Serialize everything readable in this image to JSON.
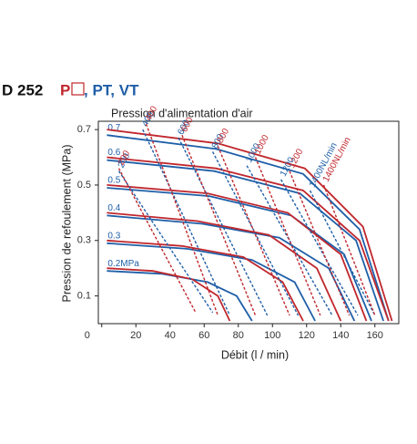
{
  "chart_data": {
    "type": "line",
    "title": "D 252",
    "title_variants": [
      "P",
      ", PT, VT"
    ],
    "annotation": "Pression d'alimentation d'air",
    "xlabel": "Débit (l / min)",
    "ylabel": "Pression de refoulement (MPa)",
    "xlim": [
      -2,
      174
    ],
    "ylim": [
      0,
      0.73
    ],
    "xticks": [
      0,
      20,
      40,
      60,
      80,
      100,
      120,
      140,
      160
    ],
    "yticks": [
      0.1,
      0.3,
      0.5,
      0.7
    ],
    "series": [
      {
        "name": "0.7",
        "color": "#1f5fa8",
        "x": [
          3,
          67,
          118,
          151,
          168
        ],
        "values": [
          0.68,
          0.63,
          0.54,
          0.34,
          0.01
        ]
      },
      {
        "name": "0.6",
        "color": "#1f5fa8",
        "x": [
          3,
          66,
          116,
          149,
          165
        ],
        "values": [
          0.59,
          0.55,
          0.47,
          0.3,
          0.01
        ]
      },
      {
        "name": "0.5",
        "color": "#1f5fa8",
        "x": [
          3,
          63,
          111,
          142,
          158
        ],
        "values": [
          0.49,
          0.46,
          0.39,
          0.25,
          0.01
        ]
      },
      {
        "name": "0.4",
        "color": "#1f5fa8",
        "x": [
          3,
          59,
          104,
          133,
          148
        ],
        "values": [
          0.39,
          0.36,
          0.31,
          0.2,
          0.01
        ]
      },
      {
        "name": "0.3",
        "color": "#1f5fa8",
        "x": [
          3,
          50,
          88,
          113,
          125
        ],
        "values": [
          0.29,
          0.27,
          0.23,
          0.15,
          0.01
        ]
      },
      {
        "name": "0.2MPa",
        "color": "#1f5fa8",
        "x": [
          3,
          35,
          62,
          79,
          88
        ],
        "values": [
          0.19,
          0.18,
          0.15,
          0.1,
          0.01
        ]
      },
      {
        "color": "#c0272d",
        "x": [
          3,
          68,
          119,
          153,
          170
        ],
        "values": [
          0.7,
          0.65,
          0.56,
          0.35,
          0.01
        ]
      },
      {
        "color": "#c0272d",
        "x": [
          3,
          67,
          118,
          151,
          168
        ],
        "values": [
          0.6,
          0.56,
          0.48,
          0.3,
          0.01
        ]
      },
      {
        "color": "#c0272d",
        "x": [
          3,
          62,
          109,
          140,
          155
        ],
        "values": [
          0.5,
          0.47,
          0.4,
          0.25,
          0.01
        ]
      },
      {
        "color": "#c0272d",
        "x": [
          3,
          56,
          98,
          126,
          140
        ],
        "values": [
          0.4,
          0.37,
          0.32,
          0.2,
          0.01
        ]
      },
      {
        "color": "#c0272d",
        "x": [
          3,
          47,
          83,
          106,
          118
        ],
        "values": [
          0.3,
          0.28,
          0.24,
          0.15,
          0.01
        ]
      },
      {
        "color": "#c0272d",
        "x": [
          3,
          30,
          53,
          68,
          75
        ],
        "values": [
          0.2,
          0.19,
          0.16,
          0.1,
          0.01
        ]
      },
      {
        "name": "200",
        "color": "#1f5fa8",
        "dashed": true,
        "x": [
          10,
          65
        ],
        "values": [
          0.55,
          0.04
        ]
      },
      {
        "name": "400",
        "color": "#1f5fa8",
        "dashed": true,
        "x": [
          24,
          75
        ],
        "values": [
          0.7,
          0.03
        ]
      },
      {
        "name": "600",
        "color": "#1f5fa8",
        "dashed": true,
        "x": [
          45,
          97
        ],
        "values": [
          0.67,
          0.03
        ]
      },
      {
        "name": "800",
        "color": "#1f5fa8",
        "dashed": true,
        "x": [
          65,
          115
        ],
        "values": [
          0.62,
          0.03
        ]
      },
      {
        "name": "1000",
        "color": "#1f5fa8",
        "dashed": true,
        "x": [
          85,
          135
        ],
        "values": [
          0.57,
          0.03
        ]
      },
      {
        "name": "1200",
        "color": "#1f5fa8",
        "dashed": true,
        "x": [
          105,
          150
        ],
        "values": [
          0.52,
          0.03
        ]
      },
      {
        "name": "1400NL/min",
        "color": "#1f5fa8",
        "dashed": true,
        "x": [
          122,
          160
        ],
        "values": [
          0.48,
          0.03
        ]
      },
      {
        "name": "200",
        "color": "#c0272d",
        "dashed": true,
        "x": [
          10,
          55
        ],
        "values": [
          0.56,
          0.04
        ]
      },
      {
        "name": "400",
        "color": "#c0272d",
        "dashed": true,
        "x": [
          26,
          68
        ],
        "values": [
          0.72,
          0.03
        ]
      },
      {
        "name": "600",
        "color": "#c0272d",
        "dashed": true,
        "x": [
          47,
          90
        ],
        "values": [
          0.68,
          0.03
        ]
      },
      {
        "name": "800",
        "color": "#c0272d",
        "dashed": true,
        "x": [
          68,
          110
        ],
        "values": [
          0.64,
          0.03
        ]
      },
      {
        "name": "1000",
        "color": "#c0272d",
        "dashed": true,
        "x": [
          90,
          128
        ],
        "values": [
          0.6,
          0.03
        ]
      },
      {
        "name": "1200",
        "color": "#c0272d",
        "dashed": true,
        "x": [
          110,
          145
        ],
        "values": [
          0.55,
          0.03
        ]
      },
      {
        "name": "1400NL/min",
        "color": "#c0272d",
        "dashed": true,
        "x": [
          130,
          160
        ],
        "values": [
          0.5,
          0.03
        ]
      }
    ]
  }
}
